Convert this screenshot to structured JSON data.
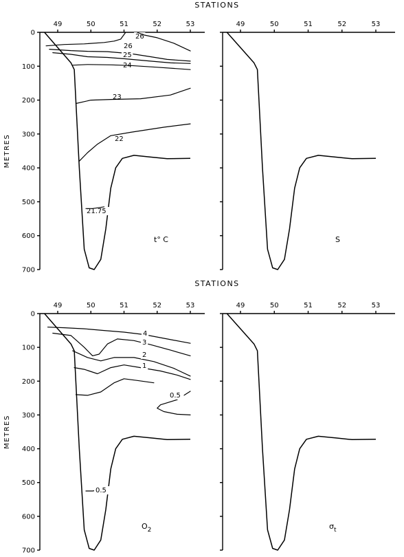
{
  "chart_data": [
    {
      "type": "contour",
      "panel": "temperature",
      "parameter_label": "t° C",
      "title": "STATIONS",
      "ylabel": "METRES",
      "stations": [
        "49",
        "50",
        "51",
        "52",
        "53"
      ],
      "depth_ticks": [
        0,
        100,
        200,
        300,
        400,
        500,
        600,
        700
      ],
      "ylim": [
        0,
        700
      ],
      "xlim": [
        48.5,
        53.3
      ],
      "bottom_profile": [
        [
          48.6,
          0
        ],
        [
          49.4,
          90
        ],
        [
          49.5,
          110
        ],
        [
          49.65,
          400
        ],
        [
          49.8,
          640
        ],
        [
          49.95,
          695
        ],
        [
          50.1,
          700
        ],
        [
          50.3,
          670
        ],
        [
          50.45,
          580
        ],
        [
          50.6,
          460
        ],
        [
          50.75,
          400
        ],
        [
          50.95,
          372
        ],
        [
          51.3,
          363
        ],
        [
          51.8,
          368
        ],
        [
          52.3,
          373
        ],
        [
          53.0,
          372
        ]
      ],
      "contours": [
        {
          "label": "26",
          "points": [
            [
              48.65,
              40
            ],
            [
              49.2,
              36
            ],
            [
              49.8,
              34
            ],
            [
              50.4,
              30
            ],
            [
              50.7,
              26
            ],
            [
              50.9,
              20
            ],
            [
              51.05,
              0
            ]
          ]
        },
        {
          "label": "26",
          "points": [
            [
              51.4,
              0
            ],
            [
              51.6,
              8
            ],
            [
              52.0,
              16
            ],
            [
              52.5,
              32
            ],
            [
              53.0,
              55
            ]
          ]
        },
        {
          "label": "25",
          "points": [
            [
              48.75,
              50
            ],
            [
              49.4,
              54
            ],
            [
              49.9,
              56
            ],
            [
              50.5,
              57
            ],
            [
              51.2,
              63
            ],
            [
              51.8,
              72
            ],
            [
              52.3,
              80
            ],
            [
              53.0,
              85
            ]
          ]
        },
        {
          "label": "24",
          "points": [
            [
              48.85,
              60
            ],
            [
              49.4,
              65
            ],
            [
              49.9,
              72
            ],
            [
              50.5,
              74
            ],
            [
              51.0,
              78
            ],
            [
              51.8,
              85
            ],
            [
              52.4,
              90
            ],
            [
              53.0,
              92
            ]
          ]
        },
        {
          "label": "23",
          "points": [
            [
              49.45,
              97
            ],
            [
              49.9,
              95
            ],
            [
              50.6,
              96
            ],
            [
              51.2,
              98
            ],
            [
              52.0,
              103
            ],
            [
              53.0,
              110
            ]
          ]
        },
        {
          "label": "22",
          "points": [
            [
              49.55,
              210
            ],
            [
              50.0,
              200
            ],
            [
              50.6,
              198
            ],
            [
              51.5,
              196
            ],
            [
              52.4,
              185
            ],
            [
              53.0,
              165
            ]
          ]
        },
        {
          "label": "21.75",
          "points": [
            [
              49.65,
              380
            ],
            [
              49.9,
              355
            ],
            [
              50.2,
              330
            ],
            [
              50.6,
              305
            ],
            [
              51.2,
              295
            ],
            [
              52.2,
              280
            ],
            [
              53.0,
              270
            ]
          ]
        },
        {
          "label": "21.75",
          "points": [
            [
              49.85,
              520
            ],
            [
              50.05,
              520
            ],
            [
              50.4,
              515
            ]
          ]
        }
      ]
    },
    {
      "type": "contour",
      "panel": "salinity",
      "parameter_label": "S",
      "stations": [
        "49",
        "50",
        "51",
        "52",
        "53"
      ],
      "depth_ticks": [
        0,
        100,
        200,
        300,
        400,
        500,
        600,
        700
      ],
      "ylim": [
        0,
        700
      ],
      "xlim": [
        48.5,
        53.3
      ],
      "bottom_profile": [
        [
          48.6,
          0
        ],
        [
          49.4,
          90
        ],
        [
          49.5,
          110
        ],
        [
          49.65,
          400
        ],
        [
          49.8,
          640
        ],
        [
          49.95,
          695
        ],
        [
          50.1,
          700
        ],
        [
          50.3,
          670
        ],
        [
          50.45,
          580
        ],
        [
          50.6,
          460
        ],
        [
          50.75,
          400
        ],
        [
          50.95,
          372
        ],
        [
          51.3,
          363
        ],
        [
          51.8,
          368
        ],
        [
          52.3,
          373
        ],
        [
          53.0,
          372
        ]
      ],
      "contours": []
    },
    {
      "type": "contour",
      "panel": "oxygen",
      "parameter_label": "O",
      "parameter_subscript": "2",
      "title": "STATIONS",
      "ylabel": "METRES",
      "stations": [
        "49",
        "50",
        "51",
        "52",
        "53"
      ],
      "depth_ticks": [
        0,
        100,
        200,
        300,
        400,
        500,
        600,
        700
      ],
      "ylim": [
        0,
        700
      ],
      "xlim": [
        48.5,
        53.3
      ],
      "bottom_profile": [
        [
          48.6,
          0
        ],
        [
          49.4,
          90
        ],
        [
          49.5,
          110
        ],
        [
          49.65,
          400
        ],
        [
          49.8,
          640
        ],
        [
          49.95,
          695
        ],
        [
          50.1,
          700
        ],
        [
          50.3,
          670
        ],
        [
          50.45,
          580
        ],
        [
          50.6,
          460
        ],
        [
          50.75,
          400
        ],
        [
          50.95,
          372
        ],
        [
          51.3,
          363
        ],
        [
          51.8,
          368
        ],
        [
          52.3,
          373
        ],
        [
          53.0,
          372
        ]
      ],
      "contours": [
        {
          "label": "4",
          "points": [
            [
              48.7,
              40
            ],
            [
              49.2,
              42
            ],
            [
              49.8,
              45
            ],
            [
              50.4,
              50
            ],
            [
              51.0,
              55
            ],
            [
              51.6,
              62
            ],
            [
              52.3,
              75
            ],
            [
              53.0,
              88
            ]
          ]
        },
        {
          "label": "3",
          "points": [
            [
              48.85,
              58
            ],
            [
              49.4,
              65
            ],
            [
              49.8,
              100
            ],
            [
              50.05,
              125
            ],
            [
              50.25,
              120
            ],
            [
              50.5,
              90
            ],
            [
              50.8,
              75
            ],
            [
              51.3,
              80
            ],
            [
              51.8,
              92
            ],
            [
              52.4,
              108
            ],
            [
              53.0,
              125
            ]
          ]
        },
        {
          "label": "2",
          "points": [
            [
              49.45,
              110
            ],
            [
              49.9,
              130
            ],
            [
              50.3,
              140
            ],
            [
              50.7,
              130
            ],
            [
              51.3,
              130
            ],
            [
              51.9,
              142
            ],
            [
              52.5,
              162
            ],
            [
              53.0,
              185
            ]
          ]
        },
        {
          "label": "1",
          "points": [
            [
              49.5,
              160
            ],
            [
              49.8,
              165
            ],
            [
              50.2,
              178
            ],
            [
              50.6,
              160
            ],
            [
              51.0,
              152
            ],
            [
              51.5,
              160
            ],
            [
              52.1,
              170
            ],
            [
              52.6,
              182
            ],
            [
              53.0,
              195
            ]
          ]
        },
        {
          "label": "0.5",
          "points": [
            [
              49.55,
              240
            ],
            [
              49.9,
              242
            ],
            [
              50.3,
              232
            ],
            [
              50.7,
              205
            ],
            [
              51.0,
              193
            ],
            [
              51.4,
              198
            ],
            [
              51.9,
              205
            ]
          ]
        },
        {
          "label": "0.5",
          "points": [
            [
              53.0,
              230
            ],
            [
              52.6,
              255
            ],
            [
              52.1,
              270
            ],
            [
              52.0,
              280
            ],
            [
              52.2,
              290
            ],
            [
              52.6,
              298
            ],
            [
              53.0,
              300
            ]
          ]
        },
        {
          "label": "0.5",
          "points": [
            [
              49.85,
              525
            ],
            [
              50.05,
              525
            ],
            [
              50.4,
              520
            ]
          ]
        }
      ]
    },
    {
      "type": "contour",
      "panel": "density",
      "parameter_label": "σ",
      "parameter_subscript": "t",
      "stations": [
        "49",
        "50",
        "51",
        "52",
        "53"
      ],
      "depth_ticks": [
        0,
        100,
        200,
        300,
        400,
        500,
        600,
        700
      ],
      "ylim": [
        0,
        700
      ],
      "xlim": [
        48.5,
        53.3
      ],
      "bottom_profile": [
        [
          48.6,
          0
        ],
        [
          49.4,
          90
        ],
        [
          49.5,
          110
        ],
        [
          49.65,
          400
        ],
        [
          49.8,
          640
        ],
        [
          49.95,
          695
        ],
        [
          50.1,
          700
        ],
        [
          50.3,
          670
        ],
        [
          50.45,
          580
        ],
        [
          50.6,
          460
        ],
        [
          50.75,
          400
        ],
        [
          50.95,
          372
        ],
        [
          51.3,
          363
        ],
        [
          51.8,
          368
        ],
        [
          52.3,
          373
        ],
        [
          53.0,
          372
        ]
      ],
      "contours": []
    }
  ]
}
